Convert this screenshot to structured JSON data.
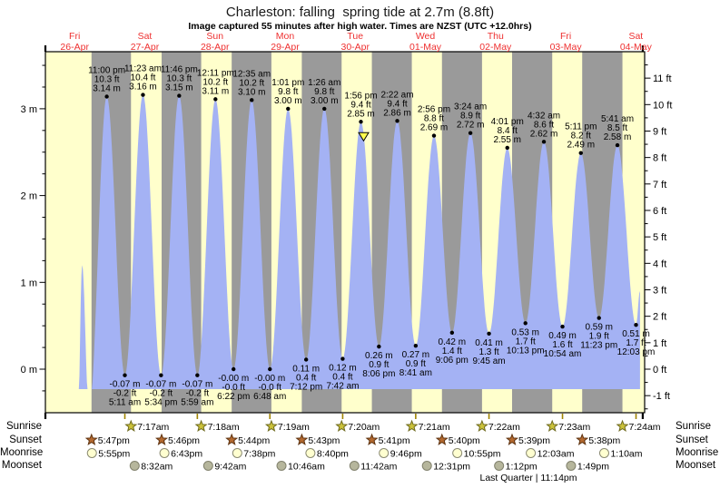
{
  "title": "Charleston: falling  spring tide at 2.7m (8.8ft)",
  "subtitle": "Image captured 55 minutes after high water. Times are NZST (UTC +12.0hrs)",
  "colors": {
    "day_band": "#ffffcc",
    "night_band": "#9a9a9a",
    "tide_fill": "#a4b2f4",
    "day_label": "#ee3030",
    "marker_fill": "#ffff4d",
    "frame": "#000000",
    "low_tick": "#a08400",
    "icons": {
      "sunrise": {
        "fill": "#cbc23a",
        "stroke": "#6e6a1e"
      },
      "sunset": {
        "fill": "#b4692f",
        "stroke": "#5e3310"
      },
      "moonrise": {
        "fill": "#ffffd0",
        "stroke": "#8a8a72"
      },
      "moonset": {
        "fill": "#b6b69c",
        "stroke": "#80806c"
      }
    }
  },
  "chart_data": {
    "type": "area",
    "title": "Charleston: falling  spring tide at 2.7m (8.8ft)",
    "days": [
      {
        "dow": "Fri",
        "date": "26-Apr"
      },
      {
        "dow": "Sat",
        "date": "27-Apr"
      },
      {
        "dow": "Sun",
        "date": "28-Apr"
      },
      {
        "dow": "Mon",
        "date": "29-Apr"
      },
      {
        "dow": "Tue",
        "date": "30-Apr"
      },
      {
        "dow": "Wed",
        "date": "01-May"
      },
      {
        "dow": "Thu",
        "date": "02-May"
      },
      {
        "dow": "Fri",
        "date": "03-May"
      },
      {
        "dow": "Sat",
        "date": "04-May"
      }
    ],
    "y_axis_left": {
      "unit": "m",
      "major_ticks": [
        0,
        1,
        2,
        3
      ],
      "minor_step": 0.25
    },
    "y_axis_right": {
      "unit": "ft",
      "major_ticks": [
        -1,
        0,
        1,
        2,
        3,
        4,
        5,
        6,
        7,
        8,
        9,
        10,
        11
      ],
      "minor_step": 0.5
    },
    "high_tides": [
      {
        "day": 0,
        "time": "11:00 pm",
        "height_m": 3.14,
        "label_m": "3.14 m",
        "label_ft": "10.3 ft"
      },
      {
        "day": 1,
        "time": "11:23 am",
        "height_m": 3.16,
        "label_m": "3.16 m",
        "label_ft": "10.4 ft"
      },
      {
        "day": 1,
        "time": "11:46 pm",
        "height_m": 3.15,
        "label_m": "3.15 m",
        "label_ft": "10.3 ft"
      },
      {
        "day": 2,
        "time": "12:11 pm",
        "height_m": 3.11,
        "label_m": "3.11 m",
        "label_ft": "10.2 ft"
      },
      {
        "day": 3,
        "time": "12:35 am",
        "height_m": 3.1,
        "label_m": "3.10 m",
        "label_ft": "10.2 ft"
      },
      {
        "day": 3,
        "time": "1:01 pm",
        "height_m": 3.0,
        "label_m": "3.00 m",
        "label_ft": "9.8 ft"
      },
      {
        "day": 4,
        "time": "1:26 am",
        "height_m": 3.0,
        "label_m": "3.00 m",
        "label_ft": "9.8 ft"
      },
      {
        "day": 4,
        "time": "1:56 pm",
        "height_m": 2.85,
        "label_m": "2.85 m",
        "label_ft": "9.4 ft"
      },
      {
        "day": 5,
        "time": "2:22 am",
        "height_m": 2.86,
        "label_m": "2.86 m",
        "label_ft": "9.4 ft"
      },
      {
        "day": 5,
        "time": "2:56 pm",
        "height_m": 2.69,
        "label_m": "2.69 m",
        "label_ft": "8.8 ft"
      },
      {
        "day": 6,
        "time": "3:24 am",
        "height_m": 2.72,
        "label_m": "2.72 m",
        "label_ft": "8.9 ft"
      },
      {
        "day": 6,
        "time": "4:01 pm",
        "height_m": 2.55,
        "label_m": "2.55 m",
        "label_ft": "8.4 ft"
      },
      {
        "day": 7,
        "time": "4:32 am",
        "height_m": 2.62,
        "label_m": "2.62 m",
        "label_ft": "8.6 ft"
      },
      {
        "day": 7,
        "time": "5:11 pm",
        "height_m": 2.49,
        "label_m": "2.49 m",
        "label_ft": "8.2 ft"
      },
      {
        "day": 8,
        "time": "5:41 am",
        "height_m": 2.58,
        "label_m": "2.58 m",
        "label_ft": "8.5 ft"
      }
    ],
    "low_tides": [
      {
        "day": 1,
        "time": "5:11 am",
        "height_m": -0.07,
        "label_m": "-0.07 m",
        "label_ft": "-0.2 ft"
      },
      {
        "day": 1,
        "time": "5:34 pm",
        "height_m": -0.07,
        "label_m": "-0.07 m",
        "label_ft": "-0.2 ft"
      },
      {
        "day": 2,
        "time": "5:59 am",
        "height_m": -0.07,
        "label_m": "-0.07 m",
        "label_ft": "-0.2 ft"
      },
      {
        "day": 2,
        "time": "6:22 pm",
        "height_m": -0.0,
        "label_m": "-0.00 m",
        "label_ft": "-0.0 ft"
      },
      {
        "day": 3,
        "time": "6:48 am",
        "height_m": -0.0,
        "label_m": "-0.00 m",
        "label_ft": "-0.0 ft"
      },
      {
        "day": 3,
        "time": "7:12 pm",
        "height_m": 0.11,
        "label_m": "0.11 m",
        "label_ft": "0.4 ft"
      },
      {
        "day": 4,
        "time": "7:42 am",
        "height_m": 0.12,
        "label_m": "0.12 m",
        "label_ft": "0.4 ft"
      },
      {
        "day": 4,
        "time": "8:06 pm",
        "height_m": 0.26,
        "label_m": "0.26 m",
        "label_ft": "0.9 ft"
      },
      {
        "day": 5,
        "time": "8:41 am",
        "height_m": 0.27,
        "label_m": "0.27 m",
        "label_ft": "0.9 ft"
      },
      {
        "day": 5,
        "time": "9:06 pm",
        "height_m": 0.42,
        "label_m": "0.42 m",
        "label_ft": "1.4 ft"
      },
      {
        "day": 6,
        "time": "9:45 am",
        "height_m": 0.41,
        "label_m": "0.41 m",
        "label_ft": "1.3 ft"
      },
      {
        "day": 6,
        "time": "10:13 pm",
        "height_m": 0.53,
        "label_m": "0.53 m",
        "label_ft": "1.7 ft"
      },
      {
        "day": 7,
        "time": "10:54 am",
        "height_m": 0.49,
        "label_m": "0.49 m",
        "label_ft": "1.6 ft"
      },
      {
        "day": 7,
        "time": "11:23 pm",
        "height_m": 0.59,
        "label_m": "0.59 m",
        "label_ft": "1.9 ft"
      },
      {
        "day": 8,
        "time": "12:03 pm",
        "height_m": 0.51,
        "label_m": "0.51 m",
        "label_ft": "1.7 ft"
      }
    ],
    "current_time_marker": {
      "at_high_index": 7,
      "shape": "down-triangle"
    }
  },
  "almanac": {
    "rows": [
      {
        "label": "Sunrise",
        "icon": "sunrise-icon",
        "events": [
          {
            "day": 1,
            "time": "7:17am"
          },
          {
            "day": 2,
            "time": "7:18am"
          },
          {
            "day": 3,
            "time": "7:19am"
          },
          {
            "day": 4,
            "time": "7:20am"
          },
          {
            "day": 5,
            "time": "7:21am"
          },
          {
            "day": 6,
            "time": "7:22am"
          },
          {
            "day": 7,
            "time": "7:23am"
          },
          {
            "day": 8,
            "time": "7:24am"
          }
        ]
      },
      {
        "label": "Sunset",
        "icon": "sunset-icon",
        "events": [
          {
            "day": 0,
            "time": "5:47pm"
          },
          {
            "day": 1,
            "time": "5:46pm"
          },
          {
            "day": 2,
            "time": "5:44pm"
          },
          {
            "day": 3,
            "time": "5:43pm"
          },
          {
            "day": 4,
            "time": "5:41pm"
          },
          {
            "day": 5,
            "time": "5:40pm"
          },
          {
            "day": 6,
            "time": "5:39pm"
          },
          {
            "day": 7,
            "time": "5:38pm"
          }
        ]
      },
      {
        "label": "Moonrise",
        "icon": "moonrise-icon",
        "events": [
          {
            "day": 0,
            "time": "5:55pm"
          },
          {
            "day": 1,
            "time": "6:43pm"
          },
          {
            "day": 2,
            "time": "7:38pm"
          },
          {
            "day": 3,
            "time": "8:40pm"
          },
          {
            "day": 4,
            "time": "9:46pm"
          },
          {
            "day": 5,
            "time": "10:55pm"
          },
          {
            "day": 7,
            "time": "12:03am"
          },
          {
            "day": 8,
            "time": "1:10am"
          }
        ]
      },
      {
        "label": "Moonset",
        "icon": "moonset-icon",
        "events": [
          {
            "day": 1,
            "time": "8:32am"
          },
          {
            "day": 2,
            "time": "9:42am"
          },
          {
            "day": 3,
            "time": "10:46am"
          },
          {
            "day": 4,
            "time": "11:42am"
          },
          {
            "day": 5,
            "time": "12:31pm"
          },
          {
            "day": 6,
            "time": "1:12pm"
          },
          {
            "day": 7,
            "time": "1:49pm"
          }
        ]
      }
    ],
    "moon_phase": {
      "label": "Last Quarter | 11:14pm",
      "day": 6,
      "time": "11:14pm"
    }
  }
}
